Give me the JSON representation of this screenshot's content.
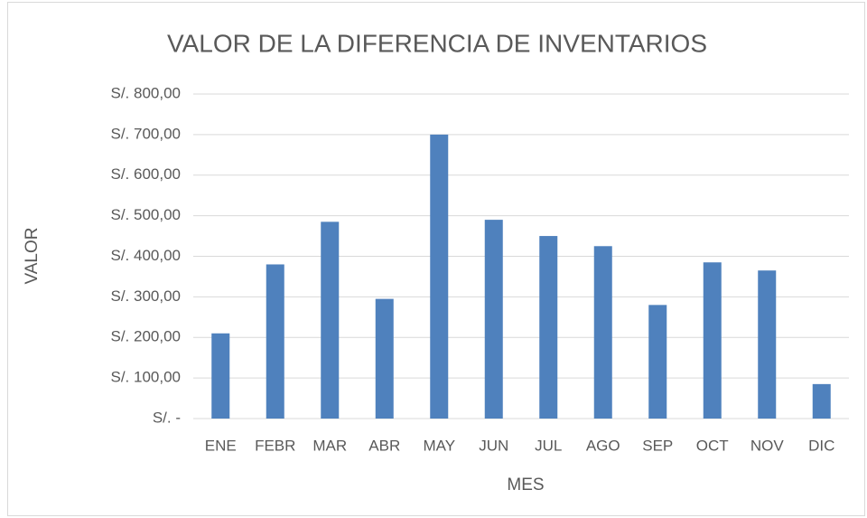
{
  "chart_data": {
    "type": "bar",
    "title": "VALOR DE LA DIFERENCIA DE INVENTARIOS",
    "x_label": "MES",
    "y_label": "VALOR",
    "categories": [
      "ENE",
      "FEBR",
      "MAR",
      "ABR",
      "MAY",
      "JUN",
      "JUL",
      "AGO",
      "SEP",
      "OCT",
      "NOV",
      "DIC"
    ],
    "values": [
      210,
      380,
      485,
      295,
      700,
      490,
      450,
      425,
      280,
      385,
      365,
      85
    ],
    "color": "#4f81bd",
    "ylim": [
      0,
      800
    ],
    "yticks": [
      {
        "value": 0,
        "label": "S/. -"
      },
      {
        "value": 100,
        "label": "S/. 100,00"
      },
      {
        "value": 200,
        "label": "S/. 200,00"
      },
      {
        "value": 300,
        "label": "S/. 300,00"
      },
      {
        "value": 400,
        "label": "S/. 400,00"
      },
      {
        "value": 500,
        "label": "S/. 500,00"
      },
      {
        "value": 600,
        "label": "S/. 600,00"
      },
      {
        "value": 700,
        "label": "S/. 700,00"
      },
      {
        "value": 800,
        "label": "S/. 800,00"
      }
    ],
    "grid": true
  }
}
